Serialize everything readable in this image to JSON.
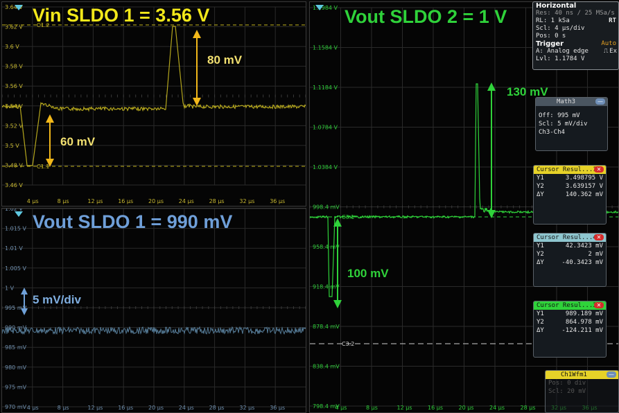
{
  "panels": {
    "vin": {
      "title": "Vin SLDO 1 = 3.56 V",
      "color": "#c8b820",
      "ylabels": [
        "3.64 V",
        "3.62 V",
        "3.6 V",
        "3.58 V",
        "3.56 V",
        "3.54 V",
        "3.52 V",
        "3.5 V",
        "3.48 V",
        "3.46 V"
      ],
      "xlabels": [
        "4 µs",
        "8 µs",
        "12 µs",
        "16 µs",
        "20 µs",
        "24 µs",
        "28 µs",
        "32 µs",
        "36 µs"
      ],
      "cursor1": "C1.2",
      "cursor2": "C1.1",
      "ann_top": "80 mV",
      "ann_bot": "60 mV"
    },
    "vout1": {
      "title": "Vout SLDO 1 = 990 mV",
      "color": "#6f9fcf",
      "ylabels": [
        "1.02 V",
        "1.015 V",
        "1.01 V",
        "1.005 V",
        "1 V",
        "995 mV",
        "990 mV",
        "985 mV",
        "980 mV",
        "975 mV",
        "970 mV"
      ],
      "xlabels": [
        "4 µs",
        "8 µs",
        "12 µs",
        "16 µs",
        "20 µs",
        "24 µs",
        "28 µs",
        "32 µs",
        "36 µs"
      ],
      "ann": "5 mV/div"
    },
    "vout2": {
      "title": "Vout SLDO 2 = 1 V",
      "color": "#2fcf3a",
      "ylabels": [
        "1.1984 V",
        "1.1584 V",
        "1.1184 V",
        "1.0784 V",
        "1.0384 V",
        "998.4 mV",
        "958.4 mV",
        "918.4 mV",
        "878.4 mV",
        "838.4 mV",
        "798.4 mV"
      ],
      "xlabels": [
        "4 µs",
        "8 µs",
        "12 µs",
        "16 µs",
        "20 µs",
        "24 µs",
        "28 µs",
        "32 µs",
        "36 µs"
      ],
      "cursor1": "C3.1",
      "cursor2": "C3.2",
      "ann_top": "130 mV",
      "ann_bot": "100 mV"
    }
  },
  "horizontal": {
    "header": "Horizontal",
    "res": "Res: 40 ns / 25 MSa/s",
    "rl": "RL:  1 kSa",
    "rt": "RT",
    "scl": "Scl:  4 µs/div",
    "pos": "Pos:  0 s",
    "trigger": "Trigger",
    "auto": "Auto",
    "mode": "A:   Analog edge",
    "ex": "Ex",
    "lvl": "Lvl:  1.1784 V"
  },
  "math3": {
    "header": "Math3",
    "off": "Off: 995 mV",
    "scl": "Scl: 5 mV/div",
    "expr": "Ch3-Ch4"
  },
  "cursor_results": [
    {
      "header": "Cursor Resul...1",
      "accent": "#e6d228",
      "rows": [
        [
          "Y1",
          "3.498795 V"
        ],
        [
          "Y2",
          "3.639157 V"
        ],
        [
          "ΔY",
          "140.362 mV"
        ]
      ]
    },
    {
      "header": "Cursor Resul...4",
      "accent": "#8ec6cf",
      "rows": [
        [
          "Y1",
          "42.3423 mV"
        ],
        [
          "Y2",
          "2 mV"
        ],
        [
          "ΔY",
          "-40.3423 mV"
        ]
      ]
    },
    {
      "header": "Cursor Resul...3",
      "accent": "#2fd23a",
      "rows": [
        [
          "Y1",
          "989.189 mV"
        ],
        [
          "Y2",
          "864.978 mV"
        ],
        [
          "ΔY",
          "-124.211 mV"
        ]
      ]
    }
  ],
  "ch1wfm": {
    "header": "Ch1Wfm1",
    "line1": "Pos: 0 div",
    "line2": "Scl: 20 mV"
  }
}
